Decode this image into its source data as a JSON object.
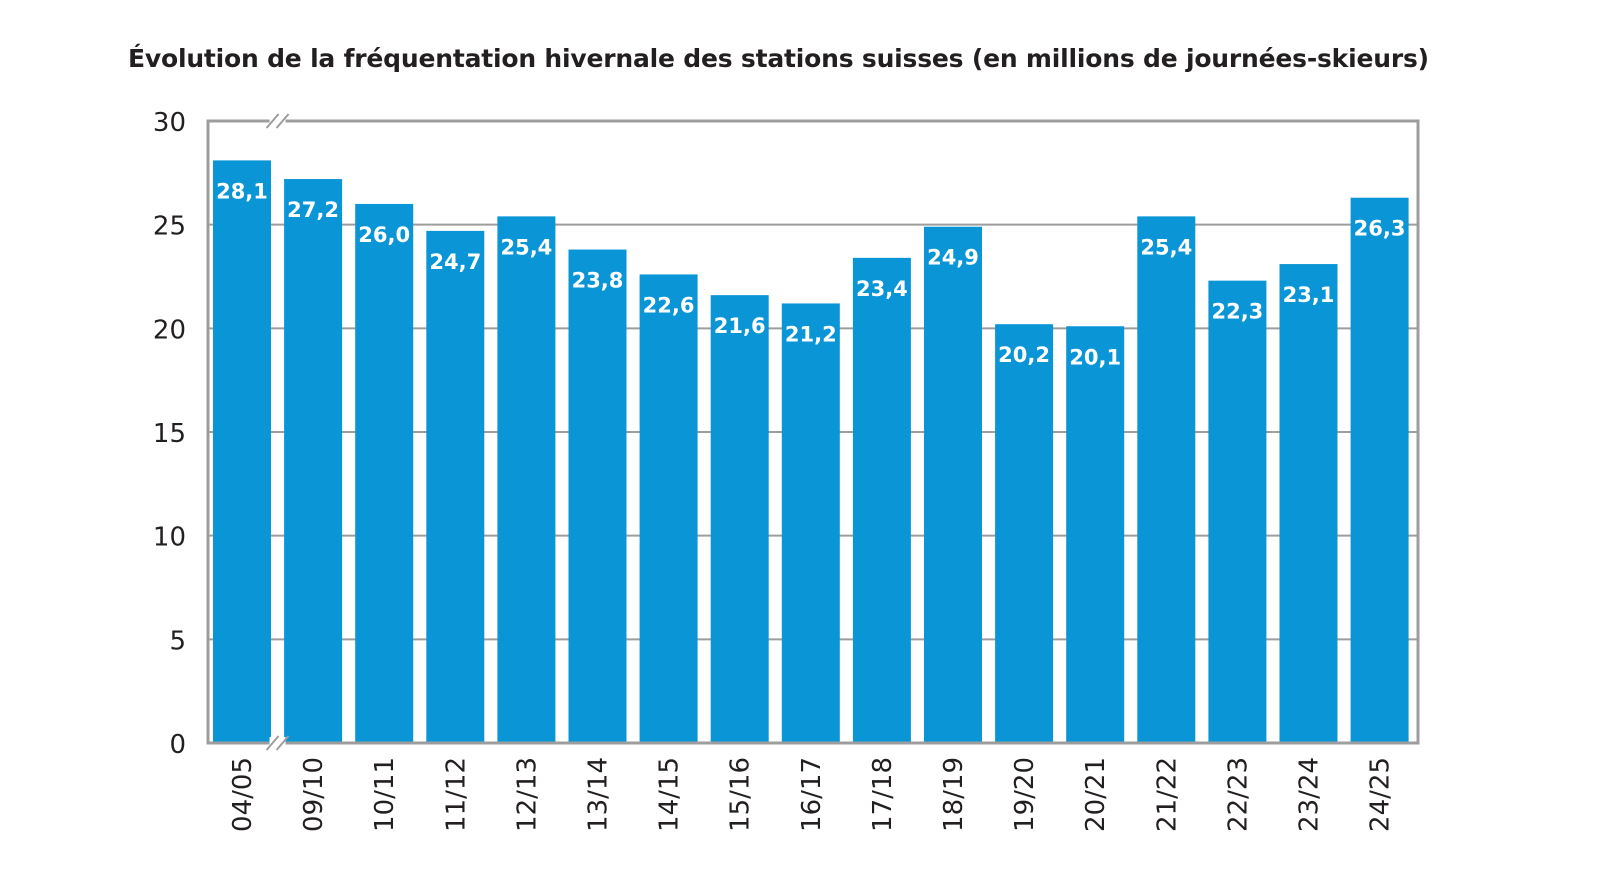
{
  "chart_data": {
    "type": "bar",
    "title": "Évolution de la fréquentation hivernale des stations suisses (en millions de journées-skieurs)",
    "xlabel": "",
    "ylabel": "",
    "categories": [
      "04/05",
      "09/10",
      "10/11",
      "11/12",
      "12/13",
      "13/14",
      "14/15",
      "15/16",
      "16/17",
      "17/18",
      "18/19",
      "19/20",
      "20/21",
      "21/22",
      "22/23",
      "23/24",
      "24/25"
    ],
    "values": [
      28.1,
      27.2,
      26.0,
      24.7,
      25.4,
      23.8,
      22.6,
      21.6,
      21.2,
      23.4,
      24.9,
      20.2,
      20.1,
      25.4,
      22.3,
      23.1,
      26.3
    ],
    "data_labels": [
      "28,1",
      "27,2",
      "26,0",
      "24,7",
      "25,4",
      "23,8",
      "22,6",
      "21,6",
      "21,2",
      "23,4",
      "24,9",
      "20,2",
      "20,1",
      "25,4",
      "22,3",
      "23,1",
      "26,3"
    ],
    "ylim": [
      0,
      30
    ],
    "yticks": [
      0,
      5,
      10,
      15,
      20,
      25,
      30
    ],
    "grid": true,
    "axis_break": "between 04/05 and 09/10",
    "colors": {
      "bar": "#0a96d6",
      "grid": "#9d9d9d",
      "text": "#231f20"
    }
  }
}
